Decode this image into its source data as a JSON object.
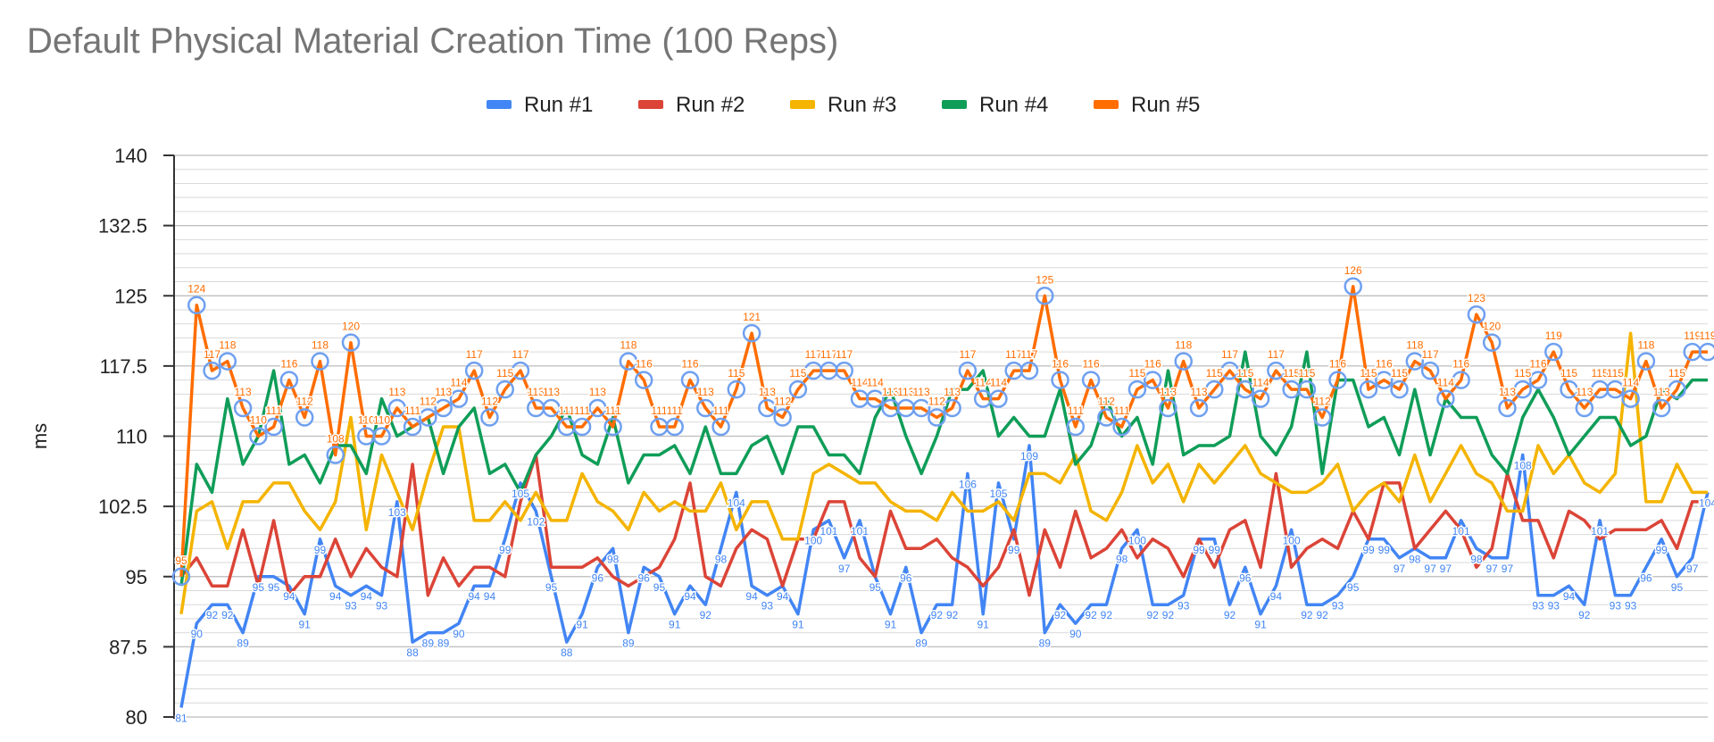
{
  "chart_data": {
    "type": "line",
    "title": "Default Physical Material Creation Time (100 Reps)",
    "xlabel": "",
    "ylabel": "ms",
    "ylim": [
      80,
      140
    ],
    "yticks": [
      "80",
      "87.5",
      "95",
      "102.5",
      "110",
      "117.5",
      "125",
      "132.5",
      "140"
    ],
    "grid": true,
    "legend_position": "top",
    "x": [
      1,
      2,
      3,
      4,
      5,
      6,
      7,
      8,
      9,
      10,
      11,
      12,
      13,
      14,
      15,
      16,
      17,
      18,
      19,
      20,
      21,
      22,
      23,
      24,
      25,
      26,
      27,
      28,
      29,
      30,
      31,
      32,
      33,
      34,
      35,
      36,
      37,
      38,
      39,
      40,
      41,
      42,
      43,
      44,
      45,
      46,
      47,
      48,
      49,
      50,
      51,
      52,
      53,
      54,
      55,
      56,
      57,
      58,
      59,
      60,
      61,
      62,
      63,
      64,
      65,
      66,
      67,
      68,
      69,
      70,
      71,
      72,
      73,
      74,
      75,
      76,
      77,
      78,
      79,
      80,
      81,
      82,
      83,
      84,
      85,
      86,
      87,
      88,
      89,
      90,
      91,
      92,
      93,
      94,
      95,
      96,
      97,
      98,
      99,
      100
    ],
    "series": [
      {
        "name": "Run #1",
        "color": "#4285F4",
        "labeled": true,
        "values": [
          81,
          90,
          92,
          92,
          89,
          95,
          95,
          94,
          91,
          99,
          94,
          93,
          94,
          93,
          103,
          88,
          89,
          89,
          90,
          94,
          94,
          99,
          105,
          102,
          95,
          88,
          91,
          96,
          98,
          89,
          96,
          95,
          91,
          94,
          92,
          98,
          104,
          94,
          93,
          94,
          91,
          100,
          101,
          97,
          101,
          95,
          91,
          96,
          89,
          92,
          92,
          106,
          91,
          105,
          99,
          109,
          89,
          92,
          90,
          92,
          92,
          98,
          100,
          92,
          92,
          93,
          99,
          99,
          92,
          96,
          91,
          94,
          100,
          92,
          92,
          93,
          95,
          99,
          99,
          97,
          98,
          97,
          97,
          101,
          98,
          97,
          97,
          108,
          93,
          93,
          94,
          92,
          101,
          93,
          93,
          96,
          99,
          95,
          97,
          104
        ]
      },
      {
        "name": "Run #2",
        "color": "#DB4437",
        "labeled": false,
        "values": [
          95,
          97,
          94,
          94,
          100,
          94,
          101,
          93,
          95,
          95,
          99,
          95,
          98,
          96,
          95,
          107,
          93,
          97,
          94,
          96,
          96,
          95,
          103,
          108,
          96,
          96,
          96,
          97,
          95,
          94,
          95,
          96,
          99,
          105,
          95,
          94,
          98,
          100,
          99,
          94,
          99,
          99,
          103,
          103,
          97,
          95,
          102,
          98,
          98,
          99,
          97,
          96,
          94,
          96,
          100,
          93,
          100,
          96,
          102,
          97,
          98,
          100,
          97,
          99,
          98,
          95,
          99,
          96,
          100,
          101,
          96,
          106,
          96,
          98,
          99,
          98,
          102,
          99,
          105,
          105,
          98,
          100,
          102,
          100,
          96,
          98,
          106,
          101,
          101,
          97,
          102,
          101,
          99,
          100,
          100,
          100,
          101,
          98,
          103,
          103
        ]
      },
      {
        "name": "Run #3",
        "color": "#F4B400",
        "labeled": false,
        "values": [
          91,
          102,
          103,
          98,
          103,
          103,
          105,
          105,
          102,
          100,
          103,
          112,
          100,
          108,
          104,
          100,
          106,
          111,
          111,
          101,
          101,
          103,
          101,
          104,
          101,
          101,
          106,
          103,
          102,
          100,
          104,
          102,
          103,
          102,
          102,
          105,
          100,
          103,
          103,
          99,
          99,
          106,
          107,
          106,
          105,
          105,
          103,
          102,
          102,
          101,
          104,
          102,
          102,
          103,
          101,
          106,
          106,
          105,
          108,
          102,
          101,
          104,
          109,
          105,
          107,
          103,
          107,
          105,
          107,
          109,
          106,
          105,
          104,
          104,
          105,
          107,
          102,
          104,
          105,
          103,
          108,
          103,
          106,
          109,
          106,
          105,
          102,
          102,
          109,
          106,
          108,
          105,
          104,
          106,
          121,
          103,
          103,
          107,
          104,
          104
        ]
      },
      {
        "name": "Run #4",
        "color": "#0F9D58",
        "labeled": false,
        "values": [
          94,
          107,
          104,
          114,
          107,
          110,
          117,
          107,
          108,
          105,
          109,
          109,
          106,
          114,
          110,
          111,
          112,
          106,
          111,
          113,
          106,
          107,
          104,
          108,
          110,
          113,
          108,
          107,
          112,
          105,
          108,
          108,
          109,
          106,
          111,
          106,
          106,
          109,
          110,
          106,
          111,
          111,
          108,
          108,
          106,
          112,
          115,
          110,
          106,
          110,
          115,
          115,
          117,
          110,
          112,
          110,
          110,
          115,
          107,
          109,
          114,
          110,
          112,
          107,
          117,
          108,
          109,
          109,
          110,
          119,
          110,
          108,
          111,
          119,
          106,
          116,
          116,
          111,
          112,
          108,
          115,
          108,
          114,
          112,
          112,
          108,
          106,
          112,
          115,
          112,
          108,
          110,
          112,
          112,
          109,
          110,
          115,
          114,
          116,
          116
        ]
      },
      {
        "name": "Run #5",
        "color": "#FF6D01",
        "labeled": true,
        "values": [
          95,
          124,
          117,
          118,
          113,
          110,
          111,
          116,
          112,
          118,
          108,
          120,
          110,
          110,
          113,
          111,
          112,
          113,
          114,
          117,
          112,
          115,
          117,
          113,
          113,
          111,
          111,
          113,
          111,
          118,
          116,
          111,
          111,
          116,
          113,
          111,
          115,
          121,
          113,
          112,
          115,
          117,
          117,
          117,
          114,
          114,
          113,
          113,
          113,
          112,
          113,
          117,
          114,
          114,
          117,
          117,
          125,
          116,
          111,
          116,
          112,
          111,
          115,
          116,
          113,
          118,
          113,
          115,
          117,
          115,
          114,
          117,
          115,
          115,
          112,
          116,
          126,
          115,
          116,
          115,
          118,
          117,
          114,
          116,
          123,
          120,
          113,
          115,
          116,
          119,
          115,
          113,
          115,
          115,
          114,
          118,
          113,
          115,
          119,
          119
        ]
      }
    ]
  }
}
